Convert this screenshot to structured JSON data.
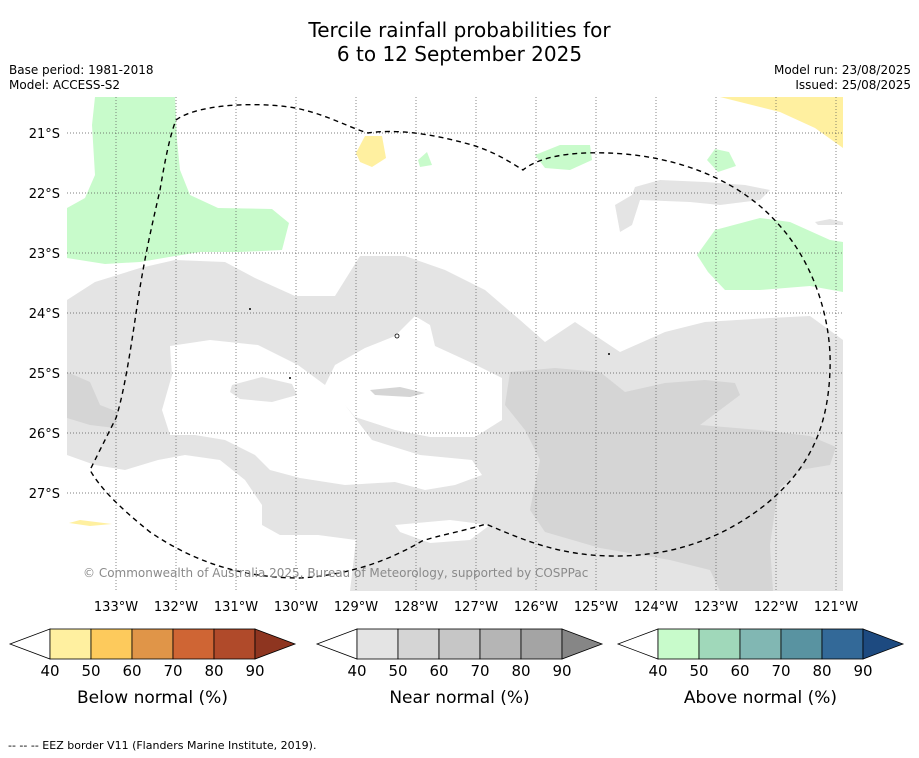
{
  "title_line1": "Tercile rainfall probabilities for",
  "title_line2": "6 to 12 September 2025",
  "base_period": "Base period: 1981-2018",
  "model": "Model: ACCESS-S2",
  "model_run": "Model run: 23/08/2025",
  "issued": "Issued: 25/08/2025",
  "copyright": "© Commonwealth of Australia 2025, Bureau of Meteorology, supported by COSPPac",
  "footnote": "--  --  -- EEZ border V11 (Flanders Marine Institute, 2019).",
  "map": {
    "lat_labels": [
      "21°S",
      "22°S",
      "23°S",
      "24°S",
      "25°S",
      "26°S",
      "27°S"
    ],
    "lon_labels": [
      "133°W",
      "132°W",
      "131°W",
      "130°W",
      "129°W",
      "128°W",
      "127°W",
      "126°W",
      "125°W",
      "124°W",
      "123°W",
      "122°W",
      "121°W"
    ]
  },
  "legends": [
    {
      "title": "Below normal (%)",
      "ticks": [
        "40",
        "50",
        "60",
        "70",
        "80",
        "90"
      ],
      "colors": [
        "#fff0a0",
        "#fdca5c",
        "#e09548",
        "#cf6534",
        "#b04a2a",
        "#8e3520"
      ]
    },
    {
      "title": "Near normal (%)",
      "ticks": [
        "40",
        "50",
        "60",
        "70",
        "80",
        "90"
      ],
      "colors": [
        "#e4e4e4",
        "#d5d5d5",
        "#c6c6c6",
        "#b5b5b5",
        "#a4a4a4",
        "#868686"
      ]
    },
    {
      "title": "Above normal (%)",
      "ticks": [
        "40",
        "50",
        "60",
        "70",
        "80",
        "90"
      ],
      "colors": [
        "#c8fbcb",
        "#a0d8ba",
        "#81b7b3",
        "#5993a1",
        "#336998",
        "#1d4a80"
      ]
    }
  ]
}
